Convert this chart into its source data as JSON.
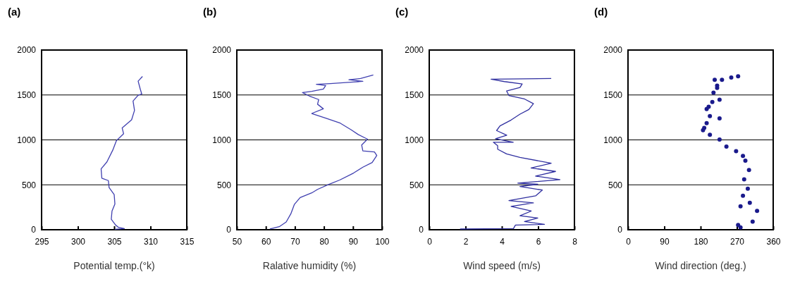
{
  "chart_data": [
    {
      "type": "line",
      "title": "(a)",
      "xlabel": "Potential temp.(°k)",
      "xlim": [
        295,
        315
      ],
      "xticks": [
        295,
        300,
        305,
        310,
        315
      ],
      "ylim": [
        0,
        2000
      ],
      "yticks": [
        0,
        500,
        1000,
        1500,
        2000
      ],
      "grid": "y",
      "series": [
        {
          "color": "#4040b0",
          "x": [
            305.1,
            306.4,
            305.6,
            305.2,
            304.6,
            304.7,
            305.1,
            305.0,
            304.3,
            304.2,
            303.3,
            303.2,
            304.0,
            304.8,
            305.3,
            306.3,
            306.1,
            307.4,
            307.8,
            307.6,
            308.3,
            308.8,
            308.6,
            308.3,
            308.9
          ],
          "values": [
            5,
            13,
            26,
            52,
            117,
            208,
            286,
            391,
            469,
            547,
            573,
            677,
            755,
            885,
            990,
            1068,
            1133,
            1224,
            1328,
            1432,
            1497,
            1510,
            1563,
            1654,
            1706
          ]
        }
      ]
    },
    {
      "type": "line",
      "title": "(b)",
      "xlabel": "Ralative humidity (%)",
      "xlim": [
        50,
        100
      ],
      "xticks": [
        50,
        60,
        70,
        80,
        90,
        100
      ],
      "ylim": [
        0,
        2000
      ],
      "yticks": [
        0,
        500,
        1000,
        1500,
        2000
      ],
      "grid": "y",
      "series": [
        {
          "color": "#4040b0",
          "x": [
            61.4,
            64.6,
            67,
            68.6,
            69.8,
            71.8,
            75.8,
            77.8,
            81.4,
            85.4,
            90.2,
            93.4,
            96.6,
            98.2,
            97.4,
            93.4,
            93,
            95,
            91.8,
            89.4,
            85.4,
            80.6,
            75.8,
            79.8,
            77.8,
            78.2,
            75,
            72.6,
            75.8,
            79.8,
            80.6,
            77.4,
            82.2,
            90.2,
            93.4,
            88.6,
            92.6,
            97
          ],
          "values": [
            8,
            34,
            86,
            177,
            281,
            358,
            410,
            449,
            501,
            553,
            631,
            696,
            748,
            826,
            865,
            878,
            943,
            1008,
            1060,
            1112,
            1190,
            1242,
            1294,
            1346,
            1397,
            1449,
            1488,
            1527,
            1540,
            1566,
            1605,
            1618,
            1626,
            1644,
            1652,
            1670,
            1683,
            1722
          ]
        }
      ]
    },
    {
      "type": "line",
      "title": "(c)",
      "xlabel": "Wind speed (m/s)",
      "xlim": [
        0,
        8
      ],
      "xticks": [
        0,
        2,
        4,
        6,
        8
      ],
      "ylim": [
        0,
        2000
      ],
      "yticks": [
        0,
        500,
        1000,
        1500,
        2000
      ],
      "grid": "y",
      "series": [
        {
          "color": "#3030a0",
          "x": [
            1.7,
            4.64,
            4.75,
            6.35,
            5.25,
            5.98,
            5.0,
            5.62,
            4.51,
            5.74,
            4.39,
            5.86,
            6.23,
            5.0,
            5.98,
            4.88,
            7.2,
            5.86,
            6.96,
            5.61,
            6.72,
            5.0,
            4.26,
            3.77,
            3.77,
            3.53,
            4.63,
            3.65,
            4.27,
            3.71,
            3.9,
            4.51,
            5.0,
            5.49,
            5.74,
            5.25,
            4.39,
            4.26,
            5.0,
            5.12,
            4.14,
            3.41,
            6.72
          ],
          "values": [
            8,
            13,
            52,
            60,
            91,
            130,
            156,
            208,
            260,
            299,
            325,
            377,
            442,
            481,
            506,
            519,
            558,
            597,
            649,
            688,
            740,
            805,
            844,
            896,
            935,
            974,
            974,
            1013,
            1052,
            1104,
            1156,
            1221,
            1286,
            1338,
            1403,
            1455,
            1494,
            1545,
            1584,
            1623,
            1649,
            1675,
            1683
          ]
        }
      ]
    },
    {
      "type": "scatter",
      "title": "(d)",
      "xlabel": "Wind direction (deg.)",
      "xlim": [
        0,
        360
      ],
      "xticks": [
        0,
        90,
        180,
        270,
        360
      ],
      "ylim": [
        0,
        2000
      ],
      "yticks": [
        0,
        500,
        1000,
        1500,
        2000
      ],
      "grid": "y",
      "marker": "circle",
      "series": [
        {
          "color": "#1a1a8c",
          "x": [
            279,
            273,
            309,
            320,
            302,
            279,
            285,
            297,
            288,
            300,
            291,
            285,
            268,
            244,
            227,
            203,
            186,
            195,
            203,
            195,
            209,
            227,
            212,
            221,
            215,
            233,
            256,
            273,
            221,
            200,
            189,
            227
          ],
          "values": [
            26,
            52,
            91,
            209,
            300,
            261,
            378,
            456,
            561,
            665,
            769,
            821,
            874,
            926,
            1004,
            1056,
            1108,
            1186,
            1265,
            1343,
            1421,
            1447,
            1525,
            1604,
            1669,
            1669,
            1695,
            1708,
            1578,
            1369,
            1134,
            1239
          ]
        }
      ]
    }
  ]
}
